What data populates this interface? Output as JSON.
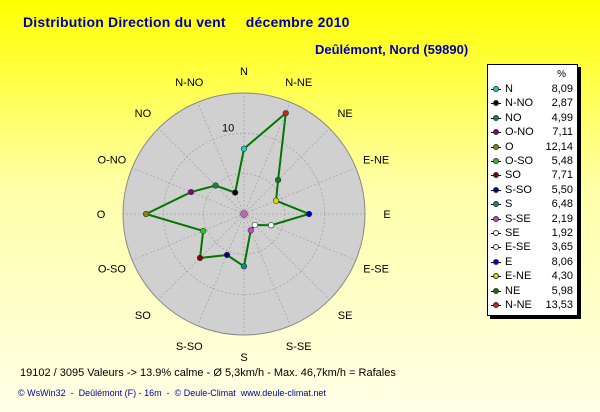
{
  "header": {
    "title": "Distribution Direction du vent",
    "period": "décembre 2010",
    "location": "Deûlémont, Nord (59890)"
  },
  "chart_data": {
    "type": "radar",
    "ring_label": "10",
    "rmax": 15,
    "unit": "%",
    "points": [
      {
        "dir": "N",
        "value": 8.09,
        "color": "#22cccc"
      },
      {
        "dir": "N-NE",
        "value": 13.53,
        "color": "#cc2222"
      },
      {
        "dir": "NE",
        "value": 5.98,
        "color": "#117711"
      },
      {
        "dir": "E-NE",
        "value": 4.3,
        "color": "#dddd00"
      },
      {
        "dir": "E",
        "value": 8.06,
        "color": "#0000cc"
      },
      {
        "dir": "E-SE",
        "value": 3.65,
        "color": "#ffffff"
      },
      {
        "dir": "SE",
        "value": 1.92,
        "color": "#ffffff"
      },
      {
        "dir": "S-SE",
        "value": 2.19,
        "color": "#cc44cc"
      },
      {
        "dir": "S",
        "value": 6.48,
        "color": "#118888"
      },
      {
        "dir": "S-SO",
        "value": 5.5,
        "color": "#000088"
      },
      {
        "dir": "SO",
        "value": 7.71,
        "color": "#880000"
      },
      {
        "dir": "O-SO",
        "value": 5.48,
        "color": "#22cc22"
      },
      {
        "dir": "O",
        "value": 12.14,
        "color": "#888800"
      },
      {
        "dir": "O-NO",
        "value": 7.11,
        "color": "#880088"
      },
      {
        "dir": "NO",
        "value": 4.99,
        "color": "#118844"
      },
      {
        "dir": "N-NO",
        "value": 2.87,
        "color": "#000000"
      }
    ],
    "legend": [
      {
        "dir": "N",
        "value": "8,09",
        "color": "#22cccc"
      },
      {
        "dir": "N-NO",
        "value": "2,87",
        "color": "#000000"
      },
      {
        "dir": "NO",
        "value": "4,99",
        "color": "#118844"
      },
      {
        "dir": "O-NO",
        "value": "7,11",
        "color": "#880088"
      },
      {
        "dir": "O",
        "value": "12,14",
        "color": "#888800"
      },
      {
        "dir": "O-SO",
        "value": "5,48",
        "color": "#22cc22"
      },
      {
        "dir": "SO",
        "value": "7,71",
        "color": "#880000"
      },
      {
        "dir": "S-SO",
        "value": "5,50",
        "color": "#000088"
      },
      {
        "dir": "S",
        "value": "6,48",
        "color": "#118888"
      },
      {
        "dir": "S-SE",
        "value": "2,19",
        "color": "#cc44cc"
      },
      {
        "dir": "SE",
        "value": "1,92",
        "color": "#ffffff"
      },
      {
        "dir": "E-SE",
        "value": "3,65",
        "color": "#ffffff"
      },
      {
        "dir": "E",
        "value": "8,06",
        "color": "#0000cc"
      },
      {
        "dir": "E-NE",
        "value": "4,30",
        "color": "#dddd00"
      },
      {
        "dir": "NE",
        "value": "5,98",
        "color": "#117711"
      },
      {
        "dir": "N-NE",
        "value": "13,53",
        "color": "#cc2222"
      }
    ],
    "line_color": "#007700",
    "disk_color": "#d0d0d0",
    "grid": true
  },
  "footer": {
    "summary": "19102 / 3095 Valeurs  -> 13.9% calme   -   Ø 5,3km/h   -   Max. 46,7km/h = Rafales",
    "credits": "© WsWin32  -  Deûlémont (F) - 16m  -  © Deule-Climat  www.deule-climat.net"
  }
}
